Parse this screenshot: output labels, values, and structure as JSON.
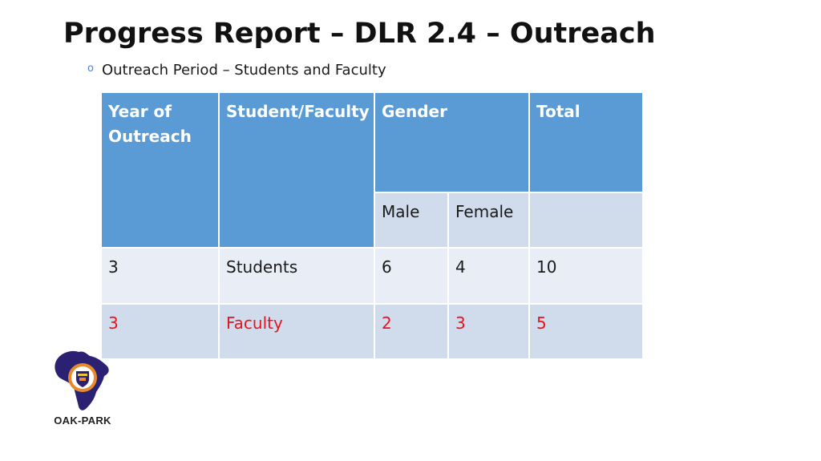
{
  "slide": {
    "title": "Progress Report – DLR 2.4 – Outreach",
    "bullet": "Outreach Period – Students and Faculty",
    "bullet_marker": "o"
  },
  "table": {
    "headers": {
      "year": "Year of Outreach",
      "student_faculty": "Student/Faculty",
      "gender": "Gender",
      "total": "Total",
      "male": "Male",
      "female": "Female"
    },
    "rows": [
      {
        "year": "3",
        "type": "Students",
        "male": "6",
        "female": "4",
        "total": "10"
      },
      {
        "year": "3",
        "type": "Faculty",
        "male": "2",
        "female": "3",
        "total": "5"
      }
    ]
  },
  "logo": {
    "label": "OAK-PARK"
  },
  "colors": {
    "header_blue": "#5b9bd5",
    "row_light": "#e9eef6",
    "row_dark": "#d0dcec",
    "highlight_red": "#e8131c",
    "logo_navy": "#2b2173",
    "logo_orange": "#e8892c"
  }
}
